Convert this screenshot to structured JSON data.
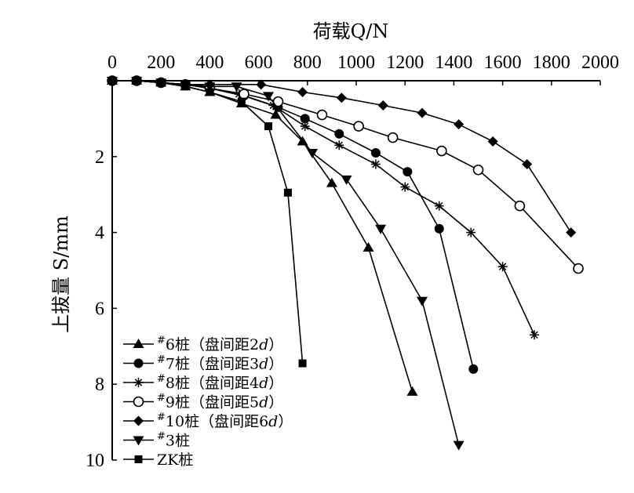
{
  "chart_data": {
    "type": "line",
    "xlabel": "荷载Q/N",
    "ylabel": "上拔量 S/mm",
    "x_axis_position": "top",
    "y_axis_inverted": true,
    "xlim": [
      0,
      2000
    ],
    "ylim": [
      0,
      10
    ],
    "x_ticks": [
      "0",
      "200",
      "400",
      "600",
      "800",
      "1000",
      "1200",
      "1400",
      "1600",
      "1800",
      "2000"
    ],
    "y_ticks": [
      "2",
      "4",
      "6",
      "8",
      "10"
    ],
    "grid": false,
    "legend_position": "bottom-left",
    "series": [
      {
        "name": "#6桩（盘间距2d）",
        "legend_sup": "#",
        "legend_text": "6桩（盘间距2",
        "legend_italic": "d",
        "legend_close": "）",
        "marker": "triangle-up",
        "x": [
          0,
          100,
          200,
          300,
          400,
          530,
          670,
          780,
          900,
          1050,
          1230
        ],
        "y": [
          0,
          0,
          0.05,
          0.15,
          0.3,
          0.6,
          0.9,
          1.6,
          2.7,
          4.4,
          8.2
        ]
      },
      {
        "name": "#7桩（盘间距3d）",
        "legend_sup": "#",
        "legend_text": "7桩（盘间距3",
        "legend_italic": "d",
        "legend_close": "）",
        "marker": "circle-filled",
        "x": [
          0,
          100,
          200,
          300,
          400,
          540,
          680,
          790,
          930,
          1080,
          1210,
          1340,
          1480
        ],
        "y": [
          0,
          0,
          0.05,
          0.1,
          0.2,
          0.4,
          0.7,
          1.0,
          1.4,
          1.9,
          2.4,
          3.9,
          7.6
        ]
      },
      {
        "name": "#8桩（盘间距4d）",
        "legend_sup": "#",
        "legend_text": "8桩（盘间距4",
        "legend_italic": "d",
        "legend_close": "）",
        "marker": "star",
        "x": [
          0,
          100,
          200,
          300,
          400,
          520,
          660,
          790,
          930,
          1080,
          1200,
          1340,
          1470,
          1600,
          1730
        ],
        "y": [
          0,
          0,
          0.05,
          0.1,
          0.2,
          0.35,
          0.65,
          1.2,
          1.7,
          2.2,
          2.8,
          3.3,
          4.0,
          4.9,
          6.7
        ]
      },
      {
        "name": "#9桩（盘间距5d）",
        "legend_sup": "#",
        "legend_text": "9桩（盘间距5",
        "legend_italic": "d",
        "legend_close": "）",
        "marker": "circle-open",
        "x": [
          0,
          100,
          200,
          300,
          400,
          540,
          680,
          860,
          1010,
          1150,
          1350,
          1500,
          1670,
          1910
        ],
        "y": [
          0,
          0,
          0.05,
          0.1,
          0.2,
          0.35,
          0.55,
          0.9,
          1.2,
          1.5,
          1.85,
          2.35,
          3.3,
          4.95
        ]
      },
      {
        "name": "#10桩（盘间距6d）",
        "legend_sup": "#",
        "legend_text": "10桩（盘间距6",
        "legend_italic": "d",
        "legend_close": "）",
        "marker": "diamond",
        "x": [
          0,
          100,
          200,
          300,
          400,
          610,
          780,
          940,
          1110,
          1270,
          1420,
          1560,
          1700,
          1880
        ],
        "y": [
          0,
          0,
          0.05,
          0.1,
          0.1,
          0.1,
          0.3,
          0.45,
          0.65,
          0.85,
          1.15,
          1.6,
          2.2,
          4.0
        ]
      },
      {
        "name": "#3桩",
        "legend_sup": "#",
        "legend_text": "3桩",
        "legend_italic": "",
        "legend_close": "",
        "marker": "triangle-down",
        "x": [
          0,
          100,
          200,
          300,
          400,
          510,
          640,
          820,
          960,
          1100,
          1270,
          1420
        ],
        "y": [
          0,
          0,
          0.05,
          0.1,
          0.15,
          0.15,
          0.4,
          1.9,
          2.6,
          3.9,
          5.8,
          9.6
        ]
      },
      {
        "name": "ZK桩",
        "legend_sup": "",
        "legend_text": "ZK桩",
        "legend_italic": "",
        "legend_close": "",
        "marker": "square",
        "x": [
          0,
          100,
          200,
          300,
          400,
          530,
          640,
          720,
          780
        ],
        "y": [
          0,
          0,
          0.05,
          0.15,
          0.3,
          0.55,
          1.2,
          2.95,
          7.45
        ]
      }
    ]
  }
}
